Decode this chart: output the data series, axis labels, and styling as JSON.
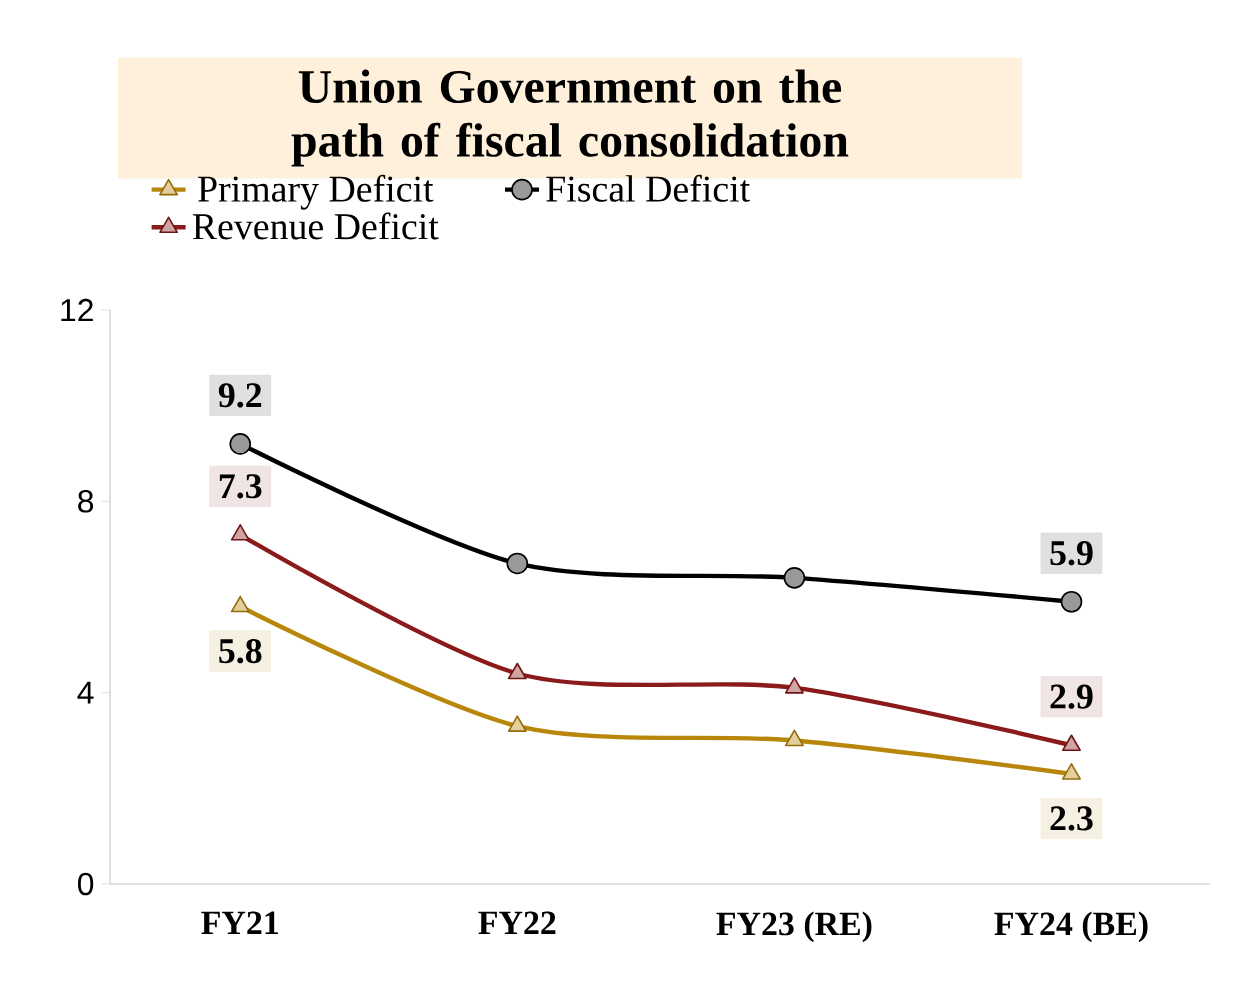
{
  "chart_data": {
    "type": "line",
    "title": "Union Government on the path of fiscal consolidation",
    "categories": [
      "FY21",
      "FY22",
      "FY23 (RE)",
      "FY24 (BE)"
    ],
    "series": [
      {
        "name": "Primary Deficit",
        "color": "#b8860b",
        "marker": "triangle",
        "values": [
          5.8,
          3.3,
          3.0,
          2.3
        ],
        "value_labels": [
          "5.8",
          null,
          null,
          "2.3"
        ]
      },
      {
        "name": "Fiscal Deficit",
        "color": "#000000",
        "marker": "circle",
        "values": [
          9.2,
          6.7,
          6.4,
          5.9
        ],
        "value_labels": [
          "9.2",
          null,
          null,
          "5.9"
        ]
      },
      {
        "name": "Revenue Deficit",
        "color": "#8b1a1a",
        "marker": "triangle",
        "values": [
          7.3,
          4.4,
          4.1,
          2.9
        ],
        "value_labels": [
          "7.3",
          null,
          null,
          "2.9"
        ]
      }
    ],
    "ylim": [
      0,
      12
    ],
    "yticks": [
      0,
      4,
      8,
      12
    ],
    "legend": "top",
    "grid": false
  }
}
